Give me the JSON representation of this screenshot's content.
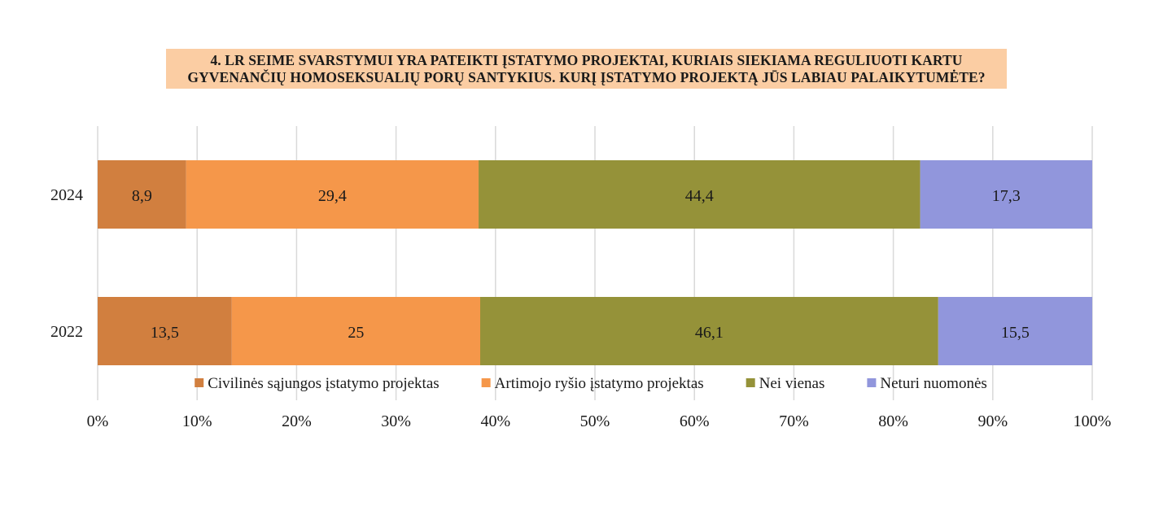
{
  "chart_data": {
    "type": "bar",
    "orientation": "horizontal",
    "stacked": true,
    "title_lines": [
      "4. LR SEIME SVARSTYMUI YRA PATEIKTI ĮSTATYMO PROJEKTAI, KURIAIS SIEKIAMA REGULIUOTI KARTU",
      "GYVENANČIŲ HOMOSEKSUALIŲ PORŲ SANTYKIUS. KURĮ ĮSTATYMO PROJEKTĄ JŪS LABIAU PALAIKYTUMĖTE?"
    ],
    "categories": [
      "2024",
      "2022"
    ],
    "series": [
      {
        "name": "Civilinės sąjungos įstatymo projektas",
        "color": "#d17f3f",
        "values": [
          8.9,
          13.5
        ],
        "labels": [
          "8,9",
          "13,5"
        ]
      },
      {
        "name": "Artimojo ryšio įstatymo projektas",
        "color": "#f5974a",
        "values": [
          29.4,
          25
        ],
        "labels": [
          "29,4",
          "25"
        ]
      },
      {
        "name": "Nei vienas",
        "color": "#959239",
        "values": [
          44.4,
          46.1
        ],
        "labels": [
          "44,4",
          "46,1"
        ]
      },
      {
        "name": "Neturi nuomonės",
        "color": "#9196dc",
        "values": [
          17.3,
          15.5
        ],
        "labels": [
          "17,3",
          "15,5"
        ]
      }
    ],
    "x_ticks": [
      "0%",
      "10%",
      "20%",
      "30%",
      "40%",
      "50%",
      "60%",
      "70%",
      "80%",
      "90%",
      "100%"
    ],
    "xlim": [
      0,
      100
    ],
    "grid": true,
    "legend_position": "bottom"
  }
}
